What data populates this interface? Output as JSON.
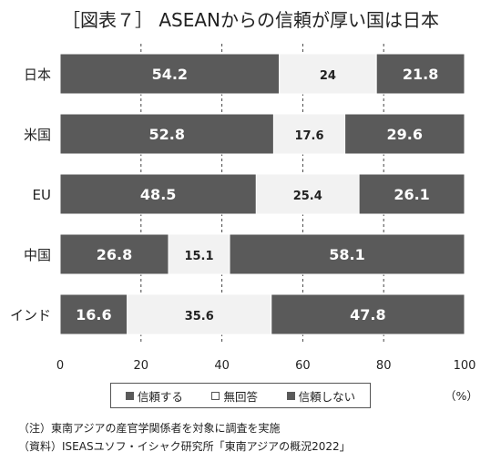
{
  "title": "［図表７］ ASEANからの信頼が厚い国は日本",
  "unit_label": "（%）",
  "notes": [
    "（注）東南アジアの産官学関係者を対象に調査を実施",
    "（資料）ISEASユソフ・イシャク研究所「東南アジアの概況2022」"
  ],
  "colors": {
    "trust": "#5a5a5a",
    "no_answer": "#f2f2f2",
    "distrust": "#5a5a5a",
    "grid": "#444444"
  },
  "chart_data": {
    "type": "bar",
    "orientation": "horizontal",
    "stacked": true,
    "categories": [
      "日本",
      "米国",
      "EU",
      "中国",
      "インド"
    ],
    "series": [
      {
        "name": "信頼する",
        "values": [
          54.2,
          52.8,
          48.5,
          26.8,
          16.6
        ]
      },
      {
        "name": "無回答",
        "values": [
          24,
          17.6,
          25.4,
          15.1,
          35.6
        ]
      },
      {
        "name": "信頼しない",
        "values": [
          21.8,
          29.6,
          26.1,
          58.1,
          47.8
        ]
      }
    ],
    "xlim": [
      0,
      100
    ],
    "xticks": [
      0,
      20,
      40,
      60,
      80,
      100
    ],
    "grid": "vertical dashed",
    "legend_position": "bottom"
  }
}
